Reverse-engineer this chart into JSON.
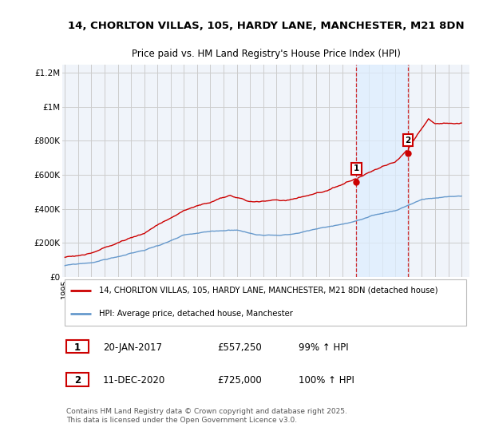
{
  "title1": "14, CHORLTON VILLAS, 105, HARDY LANE, MANCHESTER, M21 8DN",
  "title2": "Price paid vs. HM Land Registry's House Price Index (HPI)",
  "ylabel_ticks": [
    "£0",
    "£200K",
    "£400K",
    "£600K",
    "£800K",
    "£1M",
    "£1.2M"
  ],
  "ytick_values": [
    0,
    200000,
    400000,
    600000,
    800000,
    1000000,
    1200000
  ],
  "ylim": [
    0,
    1250000
  ],
  "xlim_start": 1994.8,
  "xlim_end": 2025.6,
  "red_color": "#cc0000",
  "blue_color": "#6699cc",
  "shade_color": "#ddeeff",
  "marker1_x": 2017.05,
  "marker1_y": 557250,
  "marker2_x": 2020.95,
  "marker2_y": 725000,
  "annotation1_label": "1",
  "annotation1_date": "20-JAN-2017",
  "annotation1_price": "£557,250",
  "annotation1_hpi": "99% ↑ HPI",
  "annotation2_label": "2",
  "annotation2_date": "11-DEC-2020",
  "annotation2_price": "£725,000",
  "annotation2_hpi": "100% ↑ HPI",
  "legend1_text": "14, CHORLTON VILLAS, 105, HARDY LANE, MANCHESTER, M21 8DN (detached house)",
  "legend2_text": "HPI: Average price, detached house, Manchester",
  "copyright_text": "Contains HM Land Registry data © Crown copyright and database right 2025.\nThis data is licensed under the Open Government Licence v3.0.",
  "background_color": "#f0f4f8",
  "grid_color": "#cccccc",
  "chart_bg": "#f0f4fa"
}
